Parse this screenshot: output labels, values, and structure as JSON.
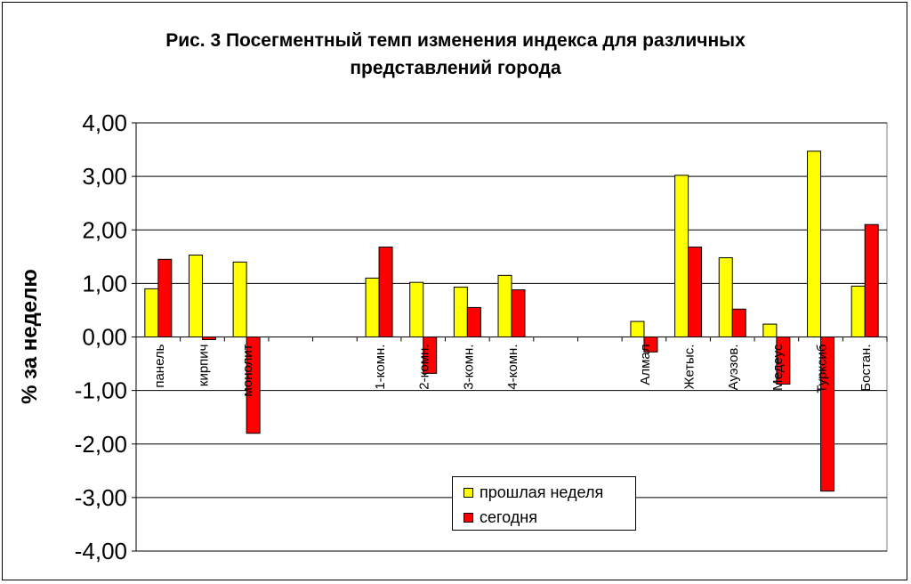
{
  "chart_data": {
    "type": "bar",
    "title": "Рис. 3 Посегментный темп изменения индекса для различных\nпредставлений города",
    "xlabel": "",
    "ylabel": "% за неделю",
    "ylim": [
      -4,
      4
    ],
    "yticks": [
      "4,00",
      "3,00",
      "2,00",
      "1,00",
      "0,00",
      "-1,00",
      "-2,00",
      "-3,00",
      "-4,00"
    ],
    "grid": true,
    "legend_position": "bottom-center",
    "categories": [
      "панель",
      "кирпич",
      "монолит",
      "",
      "",
      "1-комн.",
      "2-комн.",
      "3-комн.",
      "4-комн.",
      "",
      "",
      "Алмал",
      "Жетыс.",
      "Ауэзов.",
      "Медеус",
      "Турксиб",
      "Бостан."
    ],
    "series": [
      {
        "name": "прошлая неделя",
        "color": "#ffff00",
        "values": [
          0.9,
          1.53,
          1.4,
          null,
          null,
          1.1,
          1.02,
          0.93,
          1.15,
          null,
          null,
          0.29,
          3.02,
          1.48,
          0.24,
          3.47,
          0.95
        ]
      },
      {
        "name": "сегодня",
        "color": "#ff0000",
        "values": [
          1.45,
          -0.05,
          -1.8,
          null,
          null,
          1.68,
          -0.68,
          0.55,
          0.88,
          null,
          null,
          -0.28,
          1.68,
          0.52,
          -0.88,
          -2.88,
          2.1
        ]
      }
    ]
  }
}
